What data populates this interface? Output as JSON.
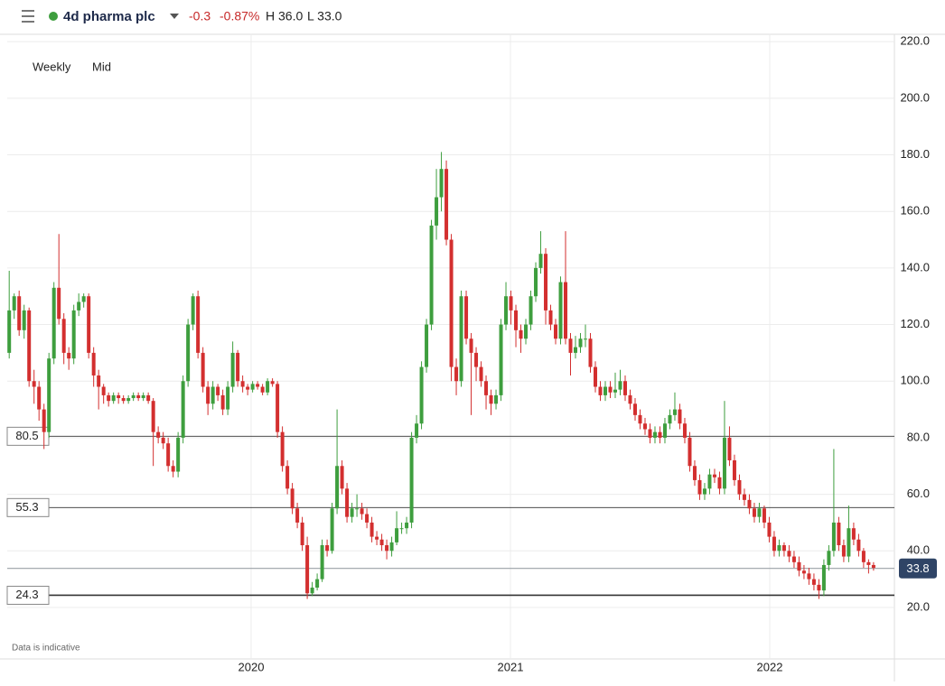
{
  "chart_data": {
    "type": "candlestick",
    "title": "4d pharma plc",
    "change": "-0.3",
    "change_pct": "-0.87%",
    "high": "H 36.0",
    "low": "L 33.0",
    "interval": "Weekly",
    "price_type": "Mid",
    "note": "Data is indicative",
    "up_color": "#3e9e3e",
    "down_color": "#d32f2f",
    "grid": true,
    "ylim": [
      1.8,
      222.6
    ],
    "yticks": [
      {
        "value": 20,
        "label": "20.0"
      },
      {
        "value": 40,
        "label": "40.0"
      },
      {
        "value": 60,
        "label": "60.0"
      },
      {
        "value": 80,
        "label": "80.0"
      },
      {
        "value": 100,
        "label": "100.0"
      },
      {
        "value": 120,
        "label": "120.0"
      },
      {
        "value": 140,
        "label": "140.0"
      },
      {
        "value": 160,
        "label": "160.0"
      },
      {
        "value": 180,
        "label": "180.0"
      },
      {
        "value": 200,
        "label": "200.0"
      },
      {
        "value": 220,
        "label": "220.0"
      }
    ],
    "xlim": [
      -0.4,
      178.2
    ],
    "xticks": [
      {
        "value": 48.7,
        "label": "2020"
      },
      {
        "value": 100.9,
        "label": "2021"
      },
      {
        "value": 153.1,
        "label": "2022"
      }
    ],
    "levels": [
      80.5,
      55.3,
      24.3
    ],
    "last_price": 33.8,
    "ohlc": [
      [
        110,
        139,
        108,
        125
      ],
      [
        125,
        131,
        122,
        130
      ],
      [
        130,
        132,
        116,
        118
      ],
      [
        118,
        127,
        115,
        125
      ],
      [
        125,
        126,
        98,
        100
      ],
      [
        100,
        104,
        92,
        98
      ],
      [
        98,
        100,
        86,
        90
      ],
      [
        90,
        92,
        76,
        82
      ],
      [
        82,
        110,
        80,
        108
      ],
      [
        108,
        135,
        106,
        133
      ],
      [
        133,
        152,
        120,
        122
      ],
      [
        122,
        124,
        106,
        110
      ],
      [
        110,
        112,
        104,
        108
      ],
      [
        108,
        127,
        106,
        125
      ],
      [
        125,
        131,
        123,
        128
      ],
      [
        128,
        131,
        126,
        130
      ],
      [
        130,
        131,
        108,
        110
      ],
      [
        110,
        112,
        98,
        102
      ],
      [
        102,
        104,
        90,
        98
      ],
      [
        98,
        99,
        92,
        95
      ],
      [
        95,
        96,
        91,
        93
      ],
      [
        93,
        96,
        92,
        95
      ],
      [
        95,
        96,
        92,
        94
      ],
      [
        94,
        95,
        92,
        93
      ],
      [
        93,
        95,
        92,
        94
      ],
      [
        94,
        96,
        93,
        95
      ],
      [
        95,
        96,
        93,
        94
      ],
      [
        94,
        96,
        93,
        95
      ],
      [
        95,
        96,
        92,
        93
      ],
      [
        93,
        94,
        70,
        82
      ],
      [
        82,
        84,
        78,
        80
      ],
      [
        80,
        82,
        76,
        78
      ],
      [
        78,
        80,
        68,
        70
      ],
      [
        70,
        72,
        66,
        68
      ],
      [
        68,
        82,
        66,
        80
      ],
      [
        80,
        102,
        78,
        100
      ],
      [
        100,
        122,
        98,
        120
      ],
      [
        120,
        131,
        118,
        130
      ],
      [
        130,
        132,
        108,
        110
      ],
      [
        110,
        112,
        96,
        98
      ],
      [
        98,
        100,
        88,
        92
      ],
      [
        92,
        100,
        90,
        98
      ],
      [
        98,
        99,
        93,
        95
      ],
      [
        95,
        97,
        88,
        90
      ],
      [
        90,
        100,
        88,
        98
      ],
      [
        98,
        114,
        96,
        110
      ],
      [
        110,
        111,
        98,
        100
      ],
      [
        100,
        102,
        96,
        98
      ],
      [
        98,
        99,
        95,
        97
      ],
      [
        97,
        100,
        96,
        99
      ],
      [
        99,
        100,
        97,
        98
      ],
      [
        98,
        99,
        95,
        96
      ],
      [
        96,
        101,
        95,
        100
      ],
      [
        100,
        101,
        98,
        99
      ],
      [
        99,
        100,
        80,
        82
      ],
      [
        82,
        84,
        68,
        70
      ],
      [
        70,
        72,
        60,
        62
      ],
      [
        62,
        64,
        53,
        55
      ],
      [
        55,
        57,
        48,
        50
      ],
      [
        50,
        52,
        40,
        42
      ],
      [
        42,
        45,
        23,
        25
      ],
      [
        25,
        29,
        24,
        27
      ],
      [
        27,
        32,
        26,
        30
      ],
      [
        30,
        44,
        29,
        42
      ],
      [
        42,
        44,
        38,
        40
      ],
      [
        40,
        57,
        39,
        55
      ],
      [
        55,
        90,
        53,
        70
      ],
      [
        70,
        72,
        60,
        62
      ],
      [
        62,
        64,
        50,
        52
      ],
      [
        52,
        57,
        50,
        55
      ],
      [
        55,
        60,
        52,
        55
      ],
      [
        55,
        57,
        51,
        53
      ],
      [
        53,
        55,
        48,
        50
      ],
      [
        50,
        52,
        43,
        45
      ],
      [
        45,
        47,
        42,
        44
      ],
      [
        44,
        46,
        40,
        42
      ],
      [
        42,
        44,
        37,
        40
      ],
      [
        40,
        45,
        38,
        43
      ],
      [
        43,
        54,
        42,
        48
      ],
      [
        48,
        50,
        46,
        48
      ],
      [
        48,
        52,
        46,
        50
      ],
      [
        50,
        82,
        48,
        80
      ],
      [
        80,
        88,
        78,
        85
      ],
      [
        85,
        107,
        83,
        105
      ],
      [
        105,
        122,
        103,
        120
      ],
      [
        120,
        157,
        118,
        155
      ],
      [
        155,
        175,
        150,
        165
      ],
      [
        165,
        181,
        160,
        175
      ],
      [
        175,
        178,
        148,
        150
      ],
      [
        150,
        152,
        100,
        105
      ],
      [
        105,
        108,
        95,
        100
      ],
      [
        100,
        132,
        98,
        130
      ],
      [
        130,
        132,
        113,
        115
      ],
      [
        115,
        117,
        88,
        110
      ],
      [
        110,
        112,
        100,
        105
      ],
      [
        105,
        107,
        98,
        100
      ],
      [
        100,
        102,
        90,
        95
      ],
      [
        95,
        97,
        88,
        92
      ],
      [
        92,
        97,
        90,
        95
      ],
      [
        95,
        122,
        93,
        120
      ],
      [
        120,
        135,
        118,
        130
      ],
      [
        130,
        132,
        120,
        125
      ],
      [
        125,
        127,
        112,
        118
      ],
      [
        118,
        120,
        110,
        115
      ],
      [
        115,
        122,
        113,
        120
      ],
      [
        120,
        132,
        118,
        130
      ],
      [
        130,
        142,
        128,
        140
      ],
      [
        140,
        153,
        138,
        145
      ],
      [
        145,
        147,
        120,
        125
      ],
      [
        125,
        127,
        118,
        120
      ],
      [
        120,
        122,
        113,
        115
      ],
      [
        115,
        137,
        113,
        135
      ],
      [
        135,
        153,
        113,
        115
      ],
      [
        115,
        117,
        102,
        110
      ],
      [
        110,
        116,
        108,
        112
      ],
      [
        112,
        117,
        110,
        115
      ],
      [
        115,
        120,
        112,
        115
      ],
      [
        115,
        117,
        103,
        105
      ],
      [
        105,
        107,
        96,
        98
      ],
      [
        98,
        100,
        93,
        95
      ],
      [
        95,
        100,
        93,
        98
      ],
      [
        98,
        100,
        94,
        96
      ],
      [
        96,
        103,
        94,
        97
      ],
      [
        97,
        104,
        95,
        100
      ],
      [
        100,
        102,
        93,
        95
      ],
      [
        95,
        97,
        90,
        92
      ],
      [
        92,
        94,
        86,
        88
      ],
      [
        88,
        90,
        83,
        85
      ],
      [
        85,
        87,
        81,
        83
      ],
      [
        83,
        85,
        78,
        80
      ],
      [
        80,
        84,
        78,
        82
      ],
      [
        82,
        84,
        78,
        80
      ],
      [
        80,
        87,
        78,
        85
      ],
      [
        85,
        90,
        83,
        88
      ],
      [
        88,
        96,
        86,
        90
      ],
      [
        90,
        92,
        83,
        85
      ],
      [
        85,
        87,
        78,
        80
      ],
      [
        80,
        82,
        68,
        70
      ],
      [
        70,
        72,
        63,
        65
      ],
      [
        65,
        67,
        58,
        60
      ],
      [
        60,
        64,
        58,
        62
      ],
      [
        62,
        69,
        60,
        67
      ],
      [
        67,
        69,
        64,
        66
      ],
      [
        66,
        68,
        60,
        62
      ],
      [
        62,
        93,
        60,
        80
      ],
      [
        80,
        84,
        70,
        72
      ],
      [
        72,
        74,
        63,
        65
      ],
      [
        65,
        67,
        58,
        60
      ],
      [
        60,
        62,
        56,
        58
      ],
      [
        58,
        60,
        53,
        55
      ],
      [
        55,
        57,
        50,
        52
      ],
      [
        52,
        57,
        50,
        55
      ],
      [
        55,
        56,
        48,
        50
      ],
      [
        50,
        52,
        43,
        45
      ],
      [
        45,
        47,
        38,
        40
      ],
      [
        40,
        44,
        38,
        42
      ],
      [
        42,
        43,
        38,
        40
      ],
      [
        40,
        42,
        36,
        38
      ],
      [
        38,
        40,
        34,
        36
      ],
      [
        36,
        38,
        31,
        33
      ],
      [
        33,
        35,
        30,
        32
      ],
      [
        32,
        34,
        28,
        30
      ],
      [
        30,
        32,
        26,
        28
      ],
      [
        28,
        30,
        23,
        26
      ],
      [
        26,
        37,
        24,
        35
      ],
      [
        35,
        42,
        33,
        40
      ],
      [
        40,
        76,
        38,
        50
      ],
      [
        50,
        52,
        40,
        42
      ],
      [
        42,
        44,
        36,
        38
      ],
      [
        38,
        56,
        36,
        48
      ],
      [
        48,
        50,
        42,
        44
      ],
      [
        44,
        46,
        38,
        40
      ],
      [
        40,
        41,
        34,
        36
      ],
      [
        36,
        37,
        32,
        35
      ],
      [
        35,
        36,
        33,
        34
      ]
    ]
  }
}
